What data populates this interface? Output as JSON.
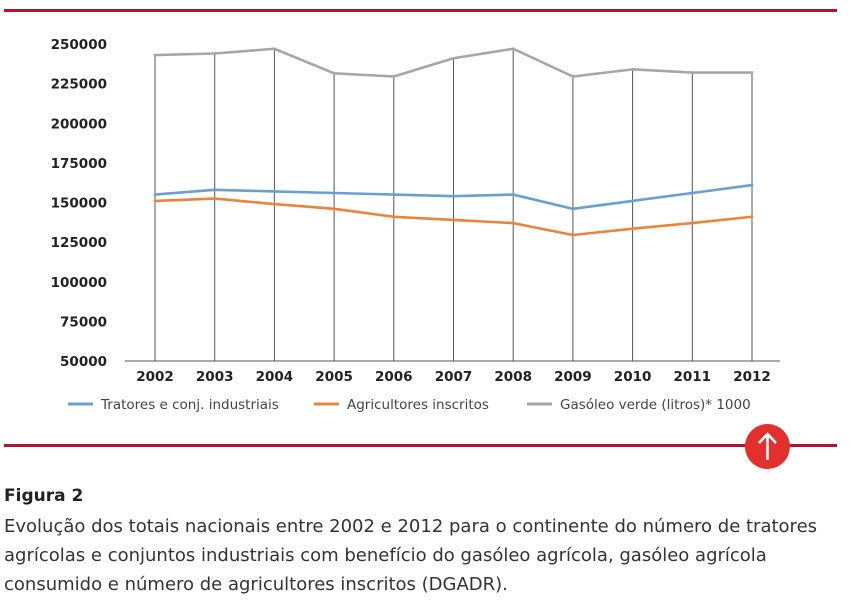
{
  "chart_data": {
    "type": "line",
    "categories": [
      "2002",
      "2003",
      "2004",
      "2005",
      "2006",
      "2007",
      "2008",
      "2009",
      "2010",
      "2011",
      "2012"
    ],
    "ylim": [
      50000,
      250000
    ],
    "yticks": [
      "250000",
      "225000",
      "200000",
      "175000",
      "150000",
      "125000",
      "100000",
      "75000",
      "50000"
    ],
    "ytick_values": [
      250000,
      225000,
      200000,
      175000,
      150000,
      125000,
      100000,
      75000,
      50000
    ],
    "grid_vertical": true,
    "legend_position": "bottom",
    "series": [
      {
        "name": "Tratores e conj. industriais",
        "color": "#6a9fd0",
        "values": [
          155000,
          158000,
          157000,
          156000,
          155000,
          154000,
          155000,
          146000,
          151000,
          156000,
          161000
        ]
      },
      {
        "name": "Agricultores inscritos",
        "color": "#e8853b",
        "values": [
          151000,
          152500,
          149000,
          146000,
          141000,
          139000,
          137000,
          129500,
          133500,
          137000,
          141000
        ]
      },
      {
        "name": "Gasóleo verde (litros)* 1000",
        "color": "#a6a6a6",
        "values": [
          243000,
          244000,
          247000,
          231500,
          229500,
          241000,
          247000,
          229500,
          234000,
          232000,
          232000
        ]
      }
    ]
  },
  "figure": {
    "label": "Figura 2",
    "caption": "Evolução dos totais nacionais entre 2002 e 2012 para o continente do número de tratores agrícolas e conjuntos industriais com benefício do gasóleo agrícola, gasóleo agrícola consumido e número de agricultores inscritos (DGADR)."
  },
  "colors": {
    "accent": "#b5122b",
    "button": "#e2312d"
  },
  "icons": {
    "up_button": "arrow-up-icon"
  }
}
